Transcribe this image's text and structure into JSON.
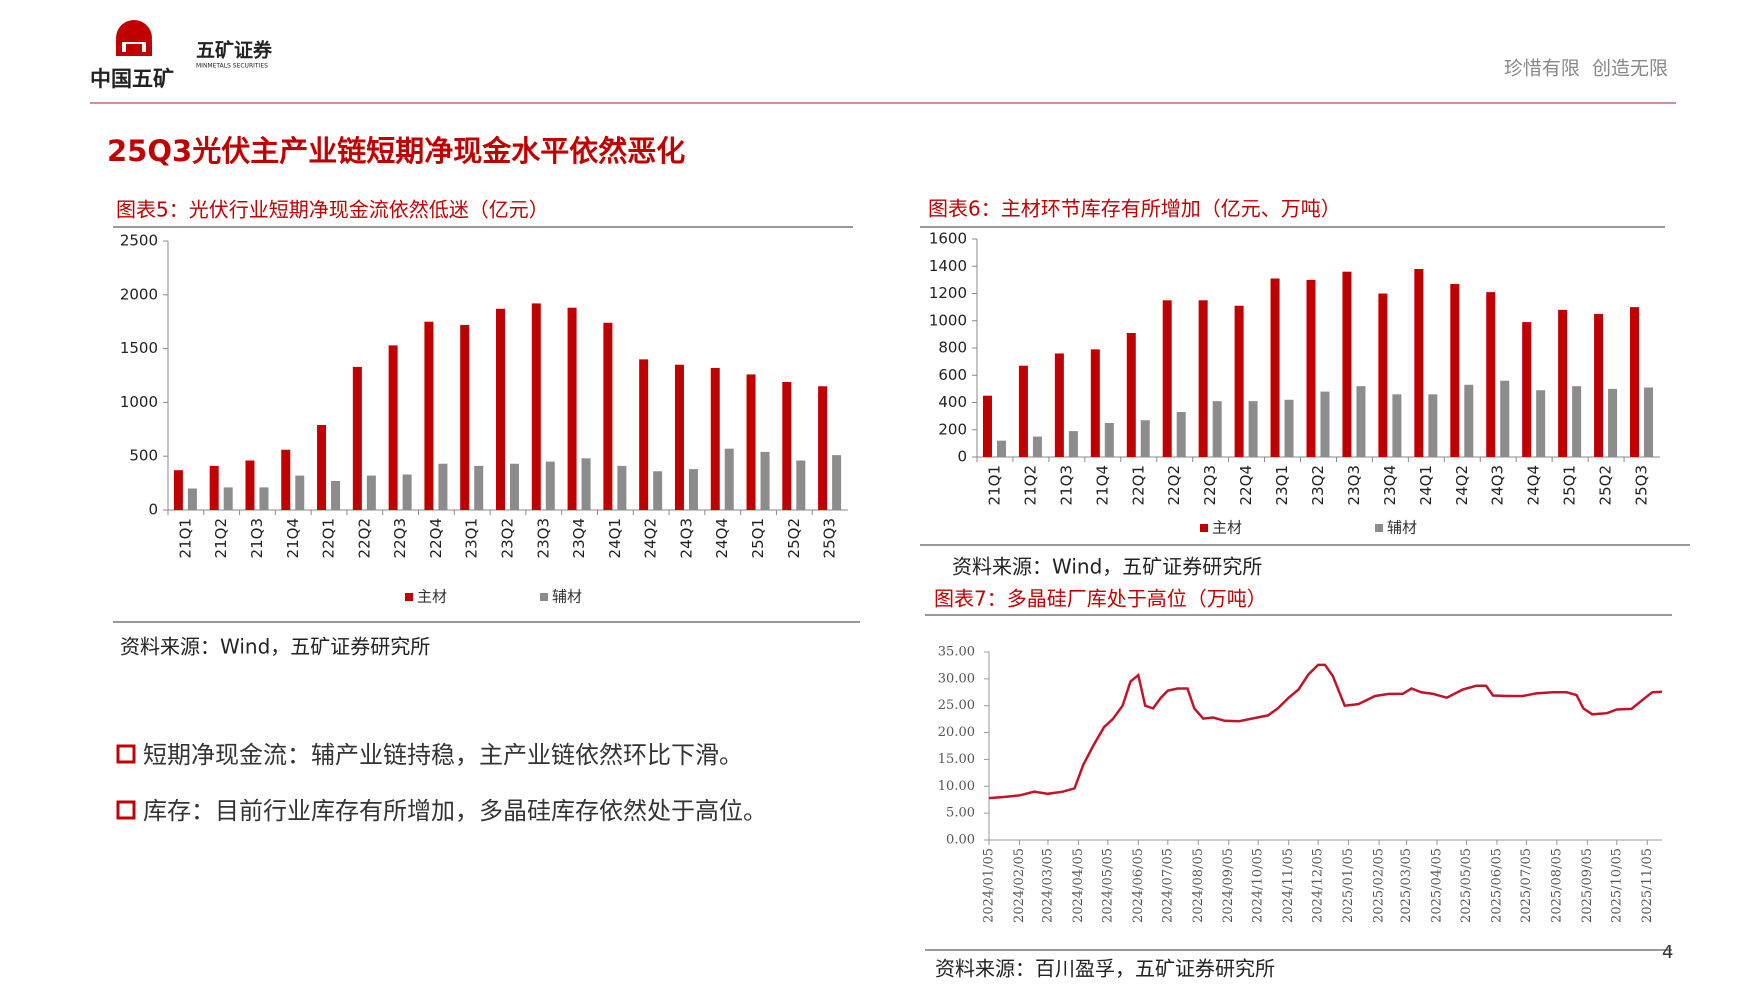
{
  "header": {
    "logo_text": "中国五矿",
    "brand": "五矿证券",
    "brand_en": "MINMETALS SECURITIES",
    "slogan": "珍惜有限  创造无限"
  },
  "title": "25Q3光伏主产业链短期净现金水平依然恶化",
  "bullets": [
    "短期净现金流：辅产业链持稳，主产业链依然环比下滑。",
    "库存：目前行业库存有所增加，多晶硅库存依然处于高位。"
  ],
  "page_number": "4",
  "chart_data": [
    {
      "type": "bar",
      "title": "图表5：光伏行业短期净现金流依然低迷（亿元）",
      "source": "资料来源：Wind，五矿证券研究所",
      "categories": [
        "21Q1",
        "21Q2",
        "21Q3",
        "21Q4",
        "22Q1",
        "22Q2",
        "22Q3",
        "22Q4",
        "23Q1",
        "23Q2",
        "23Q3",
        "23Q4",
        "24Q1",
        "24Q2",
        "24Q3",
        "24Q4",
        "25Q1",
        "25Q2",
        "25Q3"
      ],
      "series": [
        {
          "name": "主材",
          "color": "#c00000",
          "values": [
            370,
            410,
            460,
            560,
            790,
            1330,
            1530,
            1750,
            1720,
            1870,
            1920,
            1880,
            1740,
            1400,
            1350,
            1320,
            1260,
            1190,
            1150
          ]
        },
        {
          "name": "辅材",
          "color": "#8c8c8c",
          "values": [
            200,
            210,
            210,
            320,
            270,
            320,
            330,
            430,
            410,
            430,
            450,
            480,
            410,
            360,
            380,
            570,
            540,
            460,
            510
          ]
        }
      ],
      "ylim": [
        0,
        2500
      ],
      "yticks": [
        0,
        500,
        1000,
        1500,
        2000,
        2500
      ]
    },
    {
      "type": "bar",
      "title": "图表6：主材环节库存有所增加（亿元、万吨）",
      "source": "资料来源：Wind，五矿证券研究所",
      "categories": [
        "21Q1",
        "21Q2",
        "21Q3",
        "21Q4",
        "22Q1",
        "22Q2",
        "22Q3",
        "22Q4",
        "23Q1",
        "23Q2",
        "23Q3",
        "23Q4",
        "24Q1",
        "24Q2",
        "24Q3",
        "24Q4",
        "25Q1",
        "25Q2",
        "25Q3"
      ],
      "series": [
        {
          "name": "主材",
          "color": "#c00000",
          "values": [
            450,
            670,
            760,
            790,
            910,
            1150,
            1150,
            1110,
            1310,
            1300,
            1360,
            1200,
            1380,
            1270,
            1210,
            990,
            1080,
            1050,
            1100
          ]
        },
        {
          "name": "辅材",
          "color": "#8c8c8c",
          "values": [
            120,
            150,
            190,
            250,
            270,
            330,
            410,
            410,
            420,
            480,
            520,
            460,
            460,
            530,
            560,
            490,
            520,
            500,
            510
          ]
        }
      ],
      "ylim": [
        0,
        1600
      ],
      "yticks": [
        0,
        200,
        400,
        600,
        800,
        1000,
        1200,
        1400,
        1600
      ]
    },
    {
      "type": "line",
      "title": "图表7：多晶硅厂库处于高位（万吨）",
      "source": "资料来源：百川盈孚，五矿证券研究所",
      "color": "#c0142a",
      "x": [
        "2024/01/05",
        "2024/01/20",
        "2024/02/05",
        "2024/02/20",
        "2024/03/05",
        "2024/03/20",
        "2024/04/01",
        "2024/04/10",
        "2024/04/20",
        "2024/05/01",
        "2024/05/10",
        "2024/05/20",
        "2024/05/28",
        "2024/06/05",
        "2024/06/12",
        "2024/06/20",
        "2024/06/28",
        "2024/07/05",
        "2024/07/15",
        "2024/07/25",
        "2024/08/01",
        "2024/08/10",
        "2024/08/20",
        "2024/09/01",
        "2024/09/15",
        "2024/10/01",
        "2024/10/15",
        "2024/10/25",
        "2024/11/05",
        "2024/11/15",
        "2024/11/25",
        "2024/12/05",
        "2024/12/12",
        "2024/12/20",
        "2025/01/01",
        "2025/01/15",
        "2025/02/01",
        "2025/02/15",
        "2025/03/01",
        "2025/03/10",
        "2025/03/20",
        "2025/04/01",
        "2025/04/15",
        "2025/05/01",
        "2025/05/15",
        "2025/05/25",
        "2025/06/01",
        "2025/06/15",
        "2025/07/01",
        "2025/07/15",
        "2025/08/01",
        "2025/08/15",
        "2025/08/25",
        "2025/09/01",
        "2025/09/10",
        "2025/09/25",
        "2025/10/05",
        "2025/10/20",
        "2025/11/01",
        "2025/11/10",
        "2025/11/20"
      ],
      "values": [
        7.8,
        8.0,
        8.3,
        9.0,
        8.6,
        9.0,
        9.6,
        14,
        17.5,
        21,
        22.5,
        25,
        29.5,
        30.7,
        25,
        24.5,
        26.5,
        27.8,
        28.2,
        28.2,
        24.5,
        22.6,
        22.8,
        22.2,
        22.1,
        22.7,
        23.2,
        24.5,
        26.5,
        28,
        30.8,
        32.6,
        32.6,
        30.5,
        25,
        25.3,
        26.8,
        27.2,
        27.2,
        28.2,
        27.5,
        27.2,
        26.5,
        28,
        28.7,
        28.7,
        26.9,
        26.8,
        26.8,
        27.3,
        27.5,
        27.5,
        27,
        24.5,
        23.4,
        23.6,
        24.3,
        24.4,
        26.2,
        27.5,
        27.6
      ],
      "xlim": [
        "2024/01/05",
        "2025/11/20"
      ],
      "xticks": [
        "2024/01/05",
        "2024/02/05",
        "2024/03/05",
        "2024/04/05",
        "2024/05/05",
        "2024/06/05",
        "2024/07/05",
        "2024/08/05",
        "2024/09/05",
        "2024/10/05",
        "2024/11/05",
        "2024/12/05",
        "2025/01/05",
        "2025/02/05",
        "2025/03/05",
        "2025/04/05",
        "2025/05/05",
        "2025/06/05",
        "2025/07/05",
        "2025/08/05",
        "2025/09/05",
        "2025/10/05",
        "2025/11/05"
      ],
      "ylim": [
        0,
        35
      ],
      "yticks": [
        {
          "value": 0,
          "label": "0.00"
        },
        {
          "value": 5,
          "label": "5.00"
        },
        {
          "value": 10,
          "label": "10.00"
        },
        {
          "value": 15,
          "label": "15.00"
        },
        {
          "value": 20,
          "label": "20.00"
        },
        {
          "value": 25,
          "label": "25.00"
        },
        {
          "value": 30,
          "label": "30.00"
        },
        {
          "value": 35,
          "label": "35.00"
        }
      ]
    }
  ]
}
